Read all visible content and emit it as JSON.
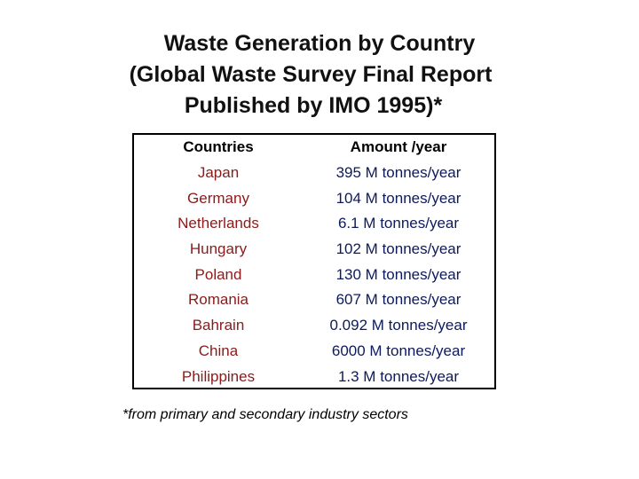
{
  "title": {
    "line1": "Waste Generation by Country",
    "line2": "(Global Waste Survey Final Report",
    "line3": "Published by IMO 1995)*"
  },
  "table": {
    "headers": [
      "Countries",
      "Amount /year"
    ],
    "rows": [
      [
        "Japan",
        "395 M tonnes/year"
      ],
      [
        "Germany",
        "104 M tonnes/year"
      ],
      [
        "Netherlands",
        "6.1 M tonnes/year"
      ],
      [
        "Hungary",
        "102 M tonnes/year"
      ],
      [
        "Poland",
        "130 M tonnes/year"
      ],
      [
        "Romania",
        "607 M tonnes/year"
      ],
      [
        "Bahrain",
        "0.092 M tonnes/year"
      ],
      [
        "China",
        "6000 M tonnes/year"
      ],
      [
        "Philippines",
        "1.3 M tonnes/year"
      ]
    ]
  },
  "footnote": "*from primary and secondary industry sectors",
  "colors": {
    "country_text": "#8b1a1a",
    "amount_text": "#0d1a5c"
  }
}
